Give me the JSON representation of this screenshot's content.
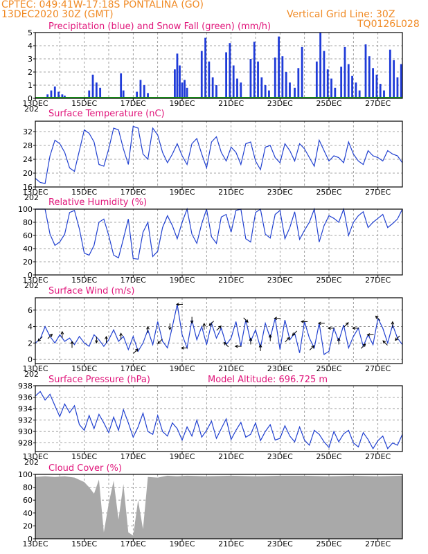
{
  "header": {
    "line1": "CPTEC:   049:41W-17:18S   PONTALINA (GO)",
    "line2_left": "13DEC2020 30Z (GMT)",
    "line2_right": "Vertical Grid Line: 30Z",
    "line3_right": "TQ0126L028"
  },
  "x_tick_labels": [
    "13DEC",
    "15DEC",
    "17DEC",
    "19DEC",
    "21DEC",
    "23DEC",
    "25DEC",
    "27DEC"
  ],
  "year_fragment": "202",
  "colors": {
    "precip": "#1f3bd8",
    "snow": "#1aa01a",
    "line": "#2040d0",
    "cloud": "#a9a9a9",
    "title": "#e0157a",
    "header": "#f08a24"
  },
  "chart_data": [
    {
      "id": "precip",
      "type": "bar",
      "title": "Precipitation (blue) and Snow Fall (green) (mm/h)",
      "ylim": [
        0,
        5
      ],
      "y_ticks": [
        0,
        1,
        2,
        3,
        4,
        5
      ],
      "x_days": [
        13,
        28
      ],
      "series": [
        {
          "name": "Precipitation",
          "x": [
            13.5,
            13.65,
            13.8,
            13.95,
            14.1,
            14.2,
            15.2,
            15.35,
            15.5,
            15.65,
            16.5,
            16.6,
            17.15,
            17.3,
            17.45,
            17.6,
            18.7,
            18.8,
            18.9,
            19.0,
            19.1,
            19.2,
            19.8,
            19.95,
            20.1,
            20.25,
            20.4,
            20.8,
            20.95,
            21.1,
            21.25,
            21.4,
            21.8,
            21.95,
            22.1,
            22.25,
            22.4,
            22.55,
            22.8,
            22.95,
            23.1,
            23.25,
            23.4,
            23.6,
            23.75,
            23.9,
            24.5,
            24.65,
            24.8,
            24.95,
            25.1,
            25.25,
            25.5,
            25.65,
            25.8,
            25.95,
            26.1,
            26.25,
            26.5,
            26.65,
            26.8,
            26.95,
            27.1,
            27.25,
            27.5,
            27.65,
            27.8,
            27.95
          ],
          "values": [
            0.3,
            0.6,
            0.9,
            0.5,
            0.3,
            0.2,
            0.6,
            1.8,
            1.2,
            0.8,
            1.9,
            0.6,
            0.5,
            1.4,
            1.0,
            0.4,
            2.2,
            3.4,
            2.5,
            1.2,
            1.4,
            0.8,
            3.6,
            4.6,
            2.8,
            1.6,
            1.0,
            3.5,
            4.2,
            2.5,
            1.5,
            1.2,
            3.0,
            4.3,
            2.8,
            1.6,
            1.0,
            0.6,
            3.1,
            4.7,
            3.2,
            2.0,
            1.2,
            0.8,
            2.3,
            3.9,
            2.8,
            5.0,
            3.6,
            2.2,
            1.5,
            0.8,
            2.4,
            3.9,
            2.6,
            1.7,
            1.2,
            0.6,
            4.1,
            3.2,
            2.3,
            1.8,
            1.1,
            0.6,
            3.7,
            2.9,
            1.6,
            2.6
          ]
        },
        {
          "name": "Snow Fall",
          "x": [
            13,
            28
          ],
          "values": [
            0,
            0
          ]
        }
      ]
    },
    {
      "id": "temp",
      "type": "line",
      "title": "Surface Temperature (nC)",
      "ylim": [
        16,
        35
      ],
      "y_ticks": [
        16,
        20,
        24,
        28,
        32
      ],
      "x": [
        13.0,
        13.2,
        13.4,
        13.6,
        13.8,
        14.0,
        14.2,
        14.4,
        14.6,
        14.8,
        15.0,
        15.2,
        15.4,
        15.6,
        15.8,
        16.0,
        16.2,
        16.4,
        16.6,
        16.8,
        17.0,
        17.2,
        17.4,
        17.6,
        17.8,
        18.0,
        18.2,
        18.4,
        18.6,
        18.8,
        19.0,
        19.2,
        19.4,
        19.6,
        19.8,
        20.0,
        20.2,
        20.4,
        20.6,
        20.8,
        21.0,
        21.2,
        21.4,
        21.6,
        21.8,
        22.0,
        22.2,
        22.4,
        22.6,
        22.8,
        23.0,
        23.2,
        23.4,
        23.6,
        23.8,
        24.0,
        24.2,
        24.4,
        24.6,
        24.8,
        25.0,
        25.2,
        25.4,
        25.6,
        25.8,
        26.0,
        26.2,
        26.4,
        26.6,
        26.8,
        27.0,
        27.2,
        27.4,
        27.6,
        27.8,
        28.0
      ],
      "values": [
        18.5,
        17.3,
        17.0,
        25.0,
        29.5,
        28.5,
        26.0,
        21.5,
        20.5,
        26.5,
        32.5,
        31.5,
        29.0,
        22.5,
        22.0,
        27.0,
        33.0,
        32.5,
        27.0,
        22.5,
        33.5,
        33.0,
        25.5,
        24.0,
        33.0,
        31.0,
        26.0,
        23.0,
        25.5,
        28.5,
        25.0,
        22.5,
        28.5,
        30.0,
        25.5,
        21.5,
        29.0,
        30.5,
        26.0,
        23.5,
        27.5,
        26.0,
        22.5,
        28.5,
        29.0,
        23.5,
        21.0,
        27.5,
        28.0,
        24.5,
        23.0,
        28.5,
        26.5,
        23.5,
        28.5,
        27.0,
        24.5,
        22.0,
        29.5,
        26.5,
        23.5,
        25.0,
        24.5,
        23.0,
        29.0,
        25.5,
        23.5,
        22.5,
        26.5,
        25.0,
        24.5,
        23.5,
        26.5,
        25.5,
        25.0,
        23.0
      ]
    },
    {
      "id": "rh",
      "type": "line",
      "title": "Relative Humidity (%)",
      "ylim": [
        0,
        100
      ],
      "y_ticks": [
        0,
        20,
        40,
        60,
        80,
        100
      ],
      "x": [
        13.0,
        13.2,
        13.4,
        13.6,
        13.8,
        14.0,
        14.2,
        14.4,
        14.6,
        14.8,
        15.0,
        15.2,
        15.4,
        15.6,
        15.8,
        16.0,
        16.2,
        16.4,
        16.6,
        16.8,
        17.0,
        17.2,
        17.4,
        17.6,
        17.8,
        18.0,
        18.2,
        18.4,
        18.6,
        18.8,
        19.0,
        19.2,
        19.4,
        19.6,
        19.8,
        20.0,
        20.2,
        20.4,
        20.6,
        20.8,
        21.0,
        21.2,
        21.4,
        21.6,
        21.8,
        22.0,
        22.2,
        22.4,
        22.6,
        22.8,
        23.0,
        23.2,
        23.4,
        23.6,
        23.8,
        24.0,
        24.2,
        24.4,
        24.6,
        24.8,
        25.0,
        25.2,
        25.4,
        25.6,
        25.8,
        26.0,
        26.2,
        26.4,
        26.6,
        26.8,
        27.0,
        27.2,
        27.4,
        27.6,
        27.8,
        28.0
      ],
      "values": [
        100,
        100,
        100,
        62,
        45,
        50,
        62,
        95,
        98,
        70,
        33,
        30,
        45,
        80,
        85,
        60,
        30,
        26,
        55,
        85,
        25,
        24,
        65,
        80,
        28,
        36,
        72,
        90,
        75,
        55,
        80,
        100,
        62,
        48,
        78,
        100,
        58,
        48,
        88,
        92,
        65,
        98,
        100,
        55,
        50,
        95,
        100,
        62,
        56,
        92,
        98,
        55,
        72,
        96,
        54,
        68,
        80,
        100,
        50,
        75,
        90,
        86,
        80,
        100,
        60,
        80,
        90,
        96,
        72,
        80,
        86,
        92,
        72,
        78,
        85,
        100
      ]
    },
    {
      "id": "wind",
      "type": "line",
      "title": "Surface Wind (m/s)",
      "ylim": [
        -0.5,
        7.5
      ],
      "y_ticks": [
        0,
        2,
        4,
        6
      ],
      "x": [
        13.0,
        13.2,
        13.4,
        13.6,
        13.8,
        14.0,
        14.2,
        14.4,
        14.6,
        14.8,
        15.0,
        15.2,
        15.4,
        15.6,
        15.8,
        16.0,
        16.2,
        16.4,
        16.6,
        16.8,
        17.0,
        17.2,
        17.4,
        17.6,
        17.8,
        18.0,
        18.2,
        18.4,
        18.6,
        18.8,
        19.0,
        19.2,
        19.4,
        19.6,
        19.8,
        20.0,
        20.2,
        20.4,
        20.6,
        20.8,
        21.0,
        21.2,
        21.4,
        21.6,
        21.8,
        22.0,
        22.2,
        22.4,
        22.6,
        22.8,
        23.0,
        23.2,
        23.4,
        23.6,
        23.8,
        24.0,
        24.2,
        24.4,
        24.6,
        24.8,
        25.0,
        25.2,
        25.4,
        25.6,
        25.8,
        26.0,
        26.2,
        26.4,
        26.6,
        26.8,
        27.0,
        27.2,
        27.4,
        27.6,
        27.8,
        28.0
      ],
      "values": [
        2.0,
        2.5,
        4.0,
        2.8,
        2.0,
        3.0,
        2.2,
        2.6,
        1.8,
        2.8,
        2.0,
        1.6,
        3.0,
        2.4,
        1.6,
        2.4,
        3.6,
        2.2,
        2.8,
        1.2,
        2.8,
        1.0,
        2.0,
        3.6,
        1.8,
        4.6,
        2.2,
        1.4,
        4.0,
        6.7,
        3.0,
        1.4,
        4.8,
        2.4,
        4.0,
        1.8,
        4.4,
        2.6,
        3.8,
        1.8,
        2.6,
        4.6,
        1.6,
        4.8,
        2.2,
        3.6,
        1.4,
        4.4,
        2.6,
        5.0,
        1.2,
        4.8,
        2.4,
        3.2,
        0.8,
        4.6,
        2.6,
        1.4,
        4.4,
        0.6,
        1.0,
        3.8,
        2.2,
        4.2,
        1.4,
        2.8,
        3.8,
        1.6,
        3.0,
        1.8,
        5.0,
        3.8,
        2.0,
        4.2,
        2.6,
        1.8
      ],
      "arrow_dirs_deg": [
        225,
        45,
        90,
        90,
        270,
        90,
        90,
        45,
        90,
        225,
        270,
        180,
        270,
        90,
        225,
        45,
        135,
        180,
        90,
        90,
        90,
        180,
        45,
        225,
        180,
        45,
        180,
        180,
        90,
        45,
        180,
        45,
        180,
        135,
        135,
        90,
        225,
        180,
        315
      ],
      "arrow_x": [
        13.2,
        13.6,
        14.1,
        14.5,
        15.5,
        15.9,
        16.5,
        17.1,
        17.6,
        18.1,
        18.5,
        19.1,
        19.4,
        19.9,
        20.2,
        20.5,
        20.8,
        21.3,
        21.8,
        22.2,
        22.6,
        22.9,
        23.3,
        23.6,
        24.0,
        24.3,
        24.7,
        25.1,
        25.4,
        25.7,
        26.1,
        26.4,
        26.7,
        27.0,
        27.3,
        27.6,
        27.8,
        18.9,
        21.6
      ]
    },
    {
      "id": "pres",
      "type": "line",
      "title": "Surface Pressure (hPa)",
      "model_altitude": "Model Altitude: 696.725 m",
      "ylim": [
        926.5,
        938
      ],
      "y_ticks": [
        928,
        930,
        932,
        934,
        936,
        938
      ],
      "x": [
        13.0,
        13.2,
        13.4,
        13.6,
        13.8,
        14.0,
        14.2,
        14.4,
        14.6,
        14.8,
        15.0,
        15.2,
        15.4,
        15.6,
        15.8,
        16.0,
        16.2,
        16.4,
        16.6,
        16.8,
        17.0,
        17.2,
        17.4,
        17.6,
        17.8,
        18.0,
        18.2,
        18.4,
        18.6,
        18.8,
        19.0,
        19.2,
        19.4,
        19.6,
        19.8,
        20.0,
        20.2,
        20.4,
        20.6,
        20.8,
        21.0,
        21.2,
        21.4,
        21.6,
        21.8,
        22.0,
        22.2,
        22.4,
        22.6,
        22.8,
        23.0,
        23.2,
        23.4,
        23.6,
        23.8,
        24.0,
        24.2,
        24.4,
        24.6,
        24.8,
        25.0,
        25.2,
        25.4,
        25.6,
        25.8,
        26.0,
        26.2,
        26.4,
        26.6,
        26.8,
        27.0,
        27.2,
        27.4,
        27.6,
        27.8,
        28.0
      ],
      "values": [
        936.2,
        937.0,
        935.5,
        936.5,
        934.5,
        932.6,
        934.8,
        933.3,
        934.5,
        931.2,
        930.2,
        932.8,
        930.5,
        933.0,
        931.5,
        929.8,
        932.5,
        930.2,
        933.8,
        931.5,
        929.0,
        930.8,
        933.2,
        930.0,
        929.5,
        932.8,
        930.0,
        929.2,
        931.5,
        930.5,
        928.5,
        930.8,
        929.2,
        932.0,
        929.0,
        930.2,
        931.8,
        928.8,
        930.5,
        932.2,
        928.6,
        930.2,
        931.6,
        929.0,
        929.5,
        931.5,
        928.4,
        930.0,
        931.2,
        928.5,
        928.8,
        931.0,
        929.2,
        928.2,
        930.8,
        928.5,
        927.6,
        930.2,
        929.5,
        928.2,
        927.2,
        930.0,
        928.2,
        929.6,
        930.2,
        928.0,
        927.3,
        929.8,
        928.6,
        927.0,
        928.4,
        929.2,
        927.0,
        928.0,
        927.6,
        929.5
      ]
    },
    {
      "id": "cloud",
      "type": "area",
      "title": "Cloud Cover (%)",
      "ylim": [
        0,
        100
      ],
      "y_ticks": [
        0,
        20,
        40,
        60,
        80,
        100
      ],
      "x": [
        13.0,
        13.4,
        13.8,
        14.2,
        14.6,
        15.0,
        15.2,
        15.4,
        15.6,
        15.8,
        16.0,
        16.2,
        16.4,
        16.6,
        16.8,
        17.0,
        17.2,
        17.4,
        17.6,
        18.0,
        18.4,
        18.8,
        19.2,
        20.0,
        21.0,
        22.0,
        23.0,
        24.0,
        25.0,
        26.0,
        27.0,
        28.0
      ],
      "values": [
        96,
        97,
        96,
        97,
        95,
        88,
        80,
        70,
        92,
        10,
        55,
        90,
        30,
        85,
        10,
        5,
        60,
        15,
        96,
        95,
        98,
        97,
        98,
        97,
        98,
        97,
        98,
        98,
        97,
        98,
        97,
        98
      ]
    }
  ]
}
